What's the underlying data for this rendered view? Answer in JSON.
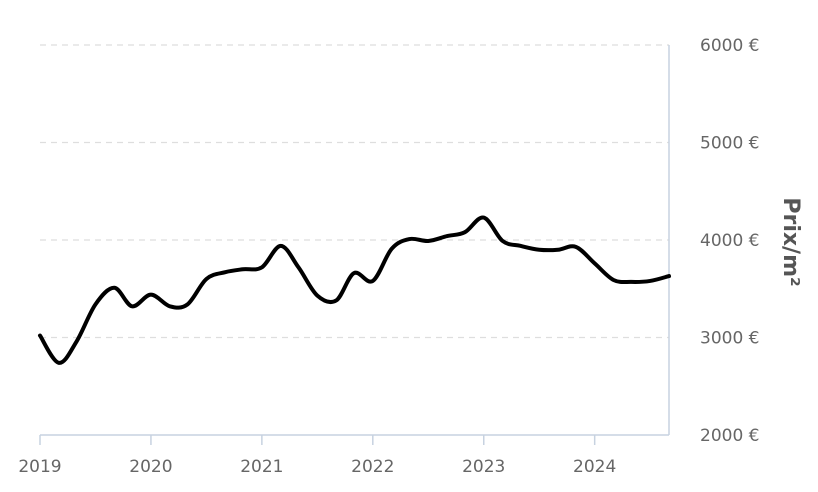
{
  "chart_data": {
    "type": "line",
    "title": "",
    "xlabel": "",
    "ylabel": "Prix/m²",
    "x_tick_labels": [
      "2019",
      "2020",
      "2021",
      "2022",
      "2023",
      "2024"
    ],
    "y_tick_labels": [
      "2000 €",
      "3000 €",
      "4000 €",
      "5000 €",
      "6000 €"
    ],
    "y_ticks": [
      2000,
      3000,
      4000,
      5000,
      6000
    ],
    "ylim": [
      2000,
      6000
    ],
    "xlim": [
      2019.0,
      2024.67
    ],
    "grid": true,
    "y_axis_position": "right",
    "series": [
      {
        "color": "#000000",
        "x": [
          2019.0,
          2019.17,
          2019.33,
          2019.5,
          2019.67,
          2019.83,
          2020.0,
          2020.17,
          2020.33,
          2020.5,
          2020.67,
          2020.83,
          2021.0,
          2021.17,
          2021.33,
          2021.5,
          2021.67,
          2021.83,
          2022.0,
          2022.17,
          2022.33,
          2022.5,
          2022.67,
          2022.83,
          2023.0,
          2023.17,
          2023.33,
          2023.5,
          2023.67,
          2023.83,
          2024.0,
          2024.17,
          2024.33,
          2024.5,
          2024.67
        ],
        "y": [
          3020,
          2740,
          2960,
          3340,
          3510,
          3320,
          3440,
          3320,
          3340,
          3600,
          3670,
          3700,
          3720,
          3940,
          3720,
          3430,
          3380,
          3660,
          3580,
          3910,
          4010,
          3990,
          4040,
          4080,
          4230,
          3990,
          3940,
          3900,
          3900,
          3930,
          3760,
          3590,
          3570,
          3580,
          3630
        ]
      }
    ]
  }
}
